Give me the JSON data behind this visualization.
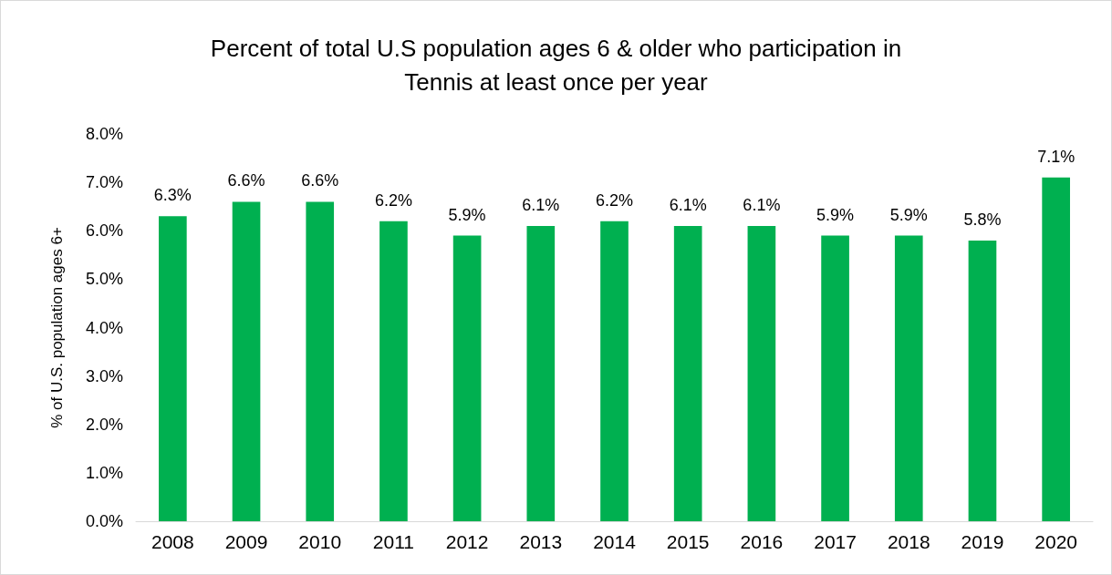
{
  "chart_data": {
    "type": "bar",
    "title": "Percent of total U.S population ages 6 & older who participation in\nTennis at least once per year",
    "ylabel": "% of U.S. population ages 6+",
    "categories": [
      "2008",
      "2009",
      "2010",
      "2011",
      "2012",
      "2013",
      "2014",
      "2015",
      "2016",
      "2017",
      "2018",
      "2019",
      "2020"
    ],
    "values": [
      6.3,
      6.6,
      6.6,
      6.2,
      5.9,
      6.1,
      6.2,
      6.1,
      6.1,
      5.9,
      5.9,
      5.8,
      7.1
    ],
    "value_labels": [
      "6.3%",
      "6.6%",
      "6.6%",
      "6.2%",
      "5.9%",
      "6.1%",
      "6.2%",
      "6.1%",
      "6.1%",
      "5.9%",
      "5.9%",
      "5.8%",
      "7.1%"
    ],
    "color": "#00b050",
    "ylim": [
      0,
      8
    ],
    "yticks": [
      {
        "value": 0,
        "label": "0.0%"
      },
      {
        "value": 1,
        "label": "1.0%"
      },
      {
        "value": 2,
        "label": "2.0%"
      },
      {
        "value": 3,
        "label": "3.0%"
      },
      {
        "value": 4,
        "label": "4.0%"
      },
      {
        "value": 5,
        "label": "5.0%"
      },
      {
        "value": 6,
        "label": "6.0%"
      },
      {
        "value": 7,
        "label": "7.0%"
      },
      {
        "value": 8,
        "label": "8.0%"
      }
    ],
    "grid": false
  }
}
